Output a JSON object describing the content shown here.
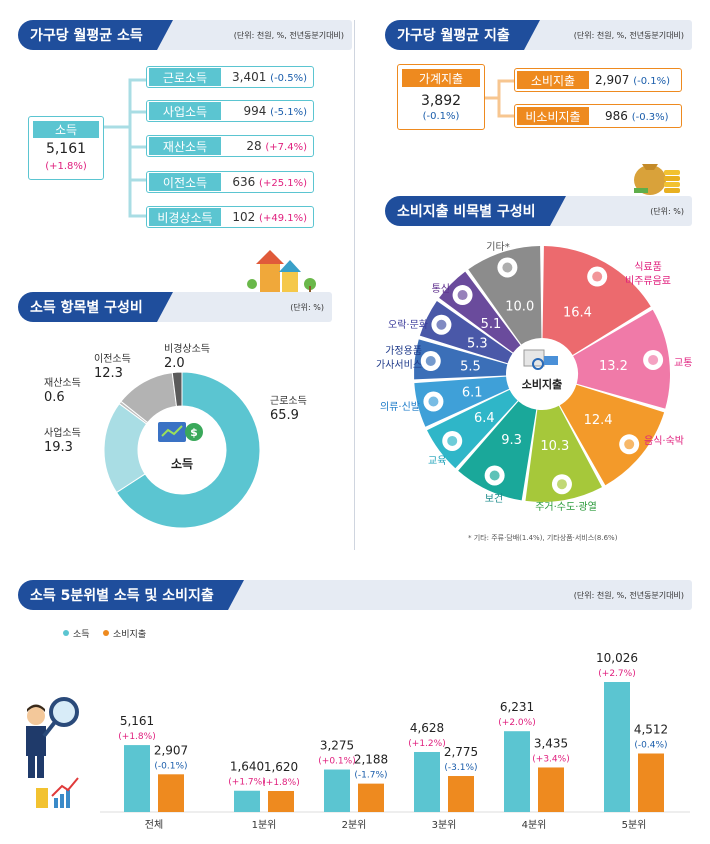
{
  "income_section": {
    "title": "가구당 월평균 소득",
    "unit": "(단위: 천원, %, 전년동분기대비)",
    "total": {
      "label": "소득",
      "value": "5,161",
      "change": "(+1.8%)"
    },
    "items": [
      {
        "label": "근로소득",
        "value": "3,401",
        "change": "(-0.5%)",
        "dir": "neg"
      },
      {
        "label": "사업소득",
        "value": "994",
        "change": "(-5.1%)",
        "dir": "neg"
      },
      {
        "label": "재산소득",
        "value": "28",
        "change": "(+7.4%)",
        "dir": "pos"
      },
      {
        "label": "이전소득",
        "value": "636",
        "change": "(+25.1%)",
        "dir": "pos"
      },
      {
        "label": "비경상소득",
        "value": "102",
        "change": "(+49.1%)",
        "dir": "pos"
      }
    ]
  },
  "expense_section": {
    "title": "가구당 월평균 지출",
    "unit": "(단위: 천원, %, 전년동분기대비)",
    "total": {
      "label": "가계지출",
      "value": "3,892",
      "change": "(-0.1%)"
    },
    "items": [
      {
        "label": "소비지출",
        "value": "2,907",
        "change": "(-0.1%)"
      },
      {
        "label": "비소비지출",
        "value": "986",
        "change": "(-0.3%)"
      }
    ]
  },
  "income_comp": {
    "title": "소득 항목별 구성비",
    "unit": "(단위: %)",
    "center_label": "소득"
  },
  "consumption_comp": {
    "title": "소비지출 비목별 구성비",
    "unit": "(단위: %)",
    "center_label": "소비지출",
    "footnote": "* 기타: 주류·담배(1.4%), 기타상품·서비스(8.6%)"
  },
  "quintile_section": {
    "title": "소득 5분위별 소득 및 소비지출",
    "unit": "(단위: 천원, %, 전년동분기대비)"
  },
  "colors": {
    "navy": "#1f4e9c",
    "teal": "#5bc5d1",
    "orange": "#ee8a1f",
    "magenta": "#e0207e",
    "blue_text": "#1a5dab"
  },
  "chart_data": [
    {
      "type": "pie",
      "title": "",
      "categories": [
        "근로소득",
        "사업소득",
        "재산소득",
        "이전소득",
        "비경상소득"
      ],
      "values": [
        65.9,
        19.3,
        0.6,
        12.3,
        2.0
      ],
      "value_labels": [
        "65.9",
        "19.3",
        "0.6",
        "12.3",
        "2.0"
      ],
      "colors": [
        "#5bc5d1",
        "#a9dde4",
        "#bdbdbd",
        "#b3b3b3",
        "#5a5a5a"
      ]
    },
    {
      "type": "pie",
      "title": "",
      "categories": [
        "식료품 비주류음료",
        "교통",
        "음식·숙박",
        "주거·수도·광열",
        "보건",
        "교육",
        "의류·신발",
        "가정용품 가사서비스",
        "오락·문화",
        "통신",
        "기타*"
      ],
      "values": [
        16.4,
        13.2,
        12.4,
        10.3,
        9.3,
        6.4,
        6.1,
        5.5,
        5.3,
        5.1,
        10.0
      ],
      "value_labels": [
        "16.4",
        "13.2",
        "12.4",
        "10.3",
        "9.3",
        "6.4",
        "6.1",
        "5.5",
        "5.3",
        "5.1",
        "10.0"
      ],
      "colors": [
        "#ec6a6e",
        "#f07aa8",
        "#f39a2a",
        "#a6c83a",
        "#1aa89a",
        "#2fb6c8",
        "#3fa0d8",
        "#3b6fb8",
        "#4a58a8",
        "#6a4b9c",
        "#8c8c8c"
      ]
    },
    {
      "type": "bar",
      "title": "",
      "categories": [
        "전체",
        "1분위",
        "2분위",
        "3분위",
        "4분위",
        "5분위"
      ],
      "series": [
        {
          "name": "소득",
          "values": [
            5161,
            1640,
            3275,
            4628,
            6231,
            10026
          ],
          "labels": [
            "5,161",
            "1,640",
            "3,275",
            "4,628",
            "6,231",
            "10,026"
          ],
          "changes": [
            "(+1.8%)",
            "(+1.7%)",
            "(+0.1%)",
            "(+1.2%)",
            "(+2.0%)",
            "(+2.7%)"
          ],
          "color": "#5bc5d1"
        },
        {
          "name": "소비지출",
          "values": [
            2907,
            1620,
            2188,
            2775,
            3435,
            4512
          ],
          "labels": [
            "2,907",
            "1,620",
            "2,188",
            "2,775",
            "3,435",
            "4,512"
          ],
          "changes": [
            "(-0.1%)",
            "(+1.8%)",
            "(-1.7%)",
            "(-3.1%)",
            "(+3.4%)",
            "(-0.4%)"
          ],
          "color": "#ee8a1f"
        }
      ],
      "ylim": [
        0,
        10026
      ]
    }
  ]
}
